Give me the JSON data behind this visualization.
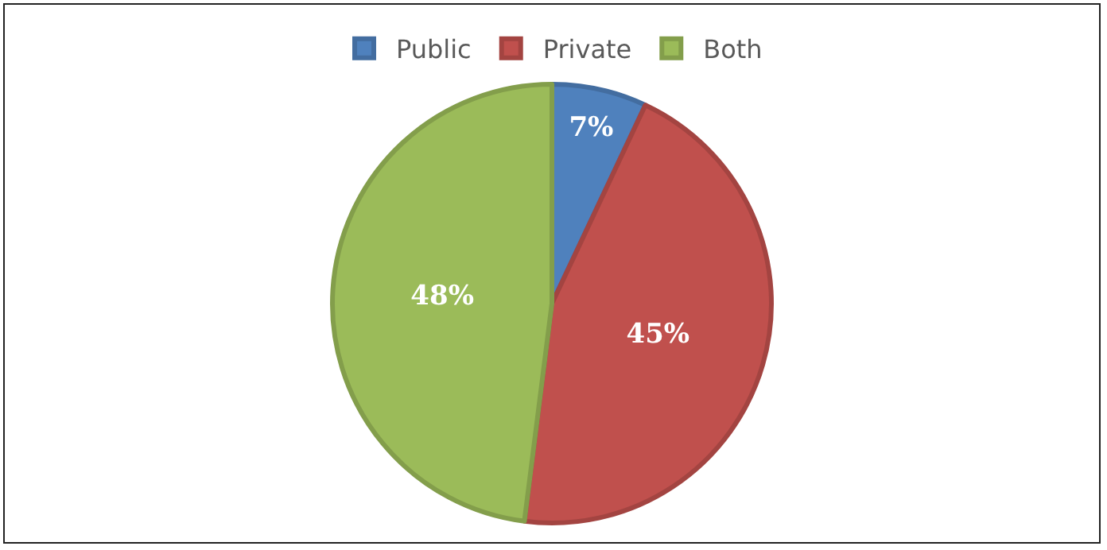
{
  "chart_data": {
    "type": "pie",
    "categories": [
      "Public",
      "Private",
      "Both"
    ],
    "values": [
      7,
      45,
      48
    ],
    "colors": [
      "#4f81bd",
      "#c0504d",
      "#9bbb59"
    ],
    "value_labels": [
      "7%",
      "45%",
      "48%"
    ],
    "legend": "top"
  }
}
